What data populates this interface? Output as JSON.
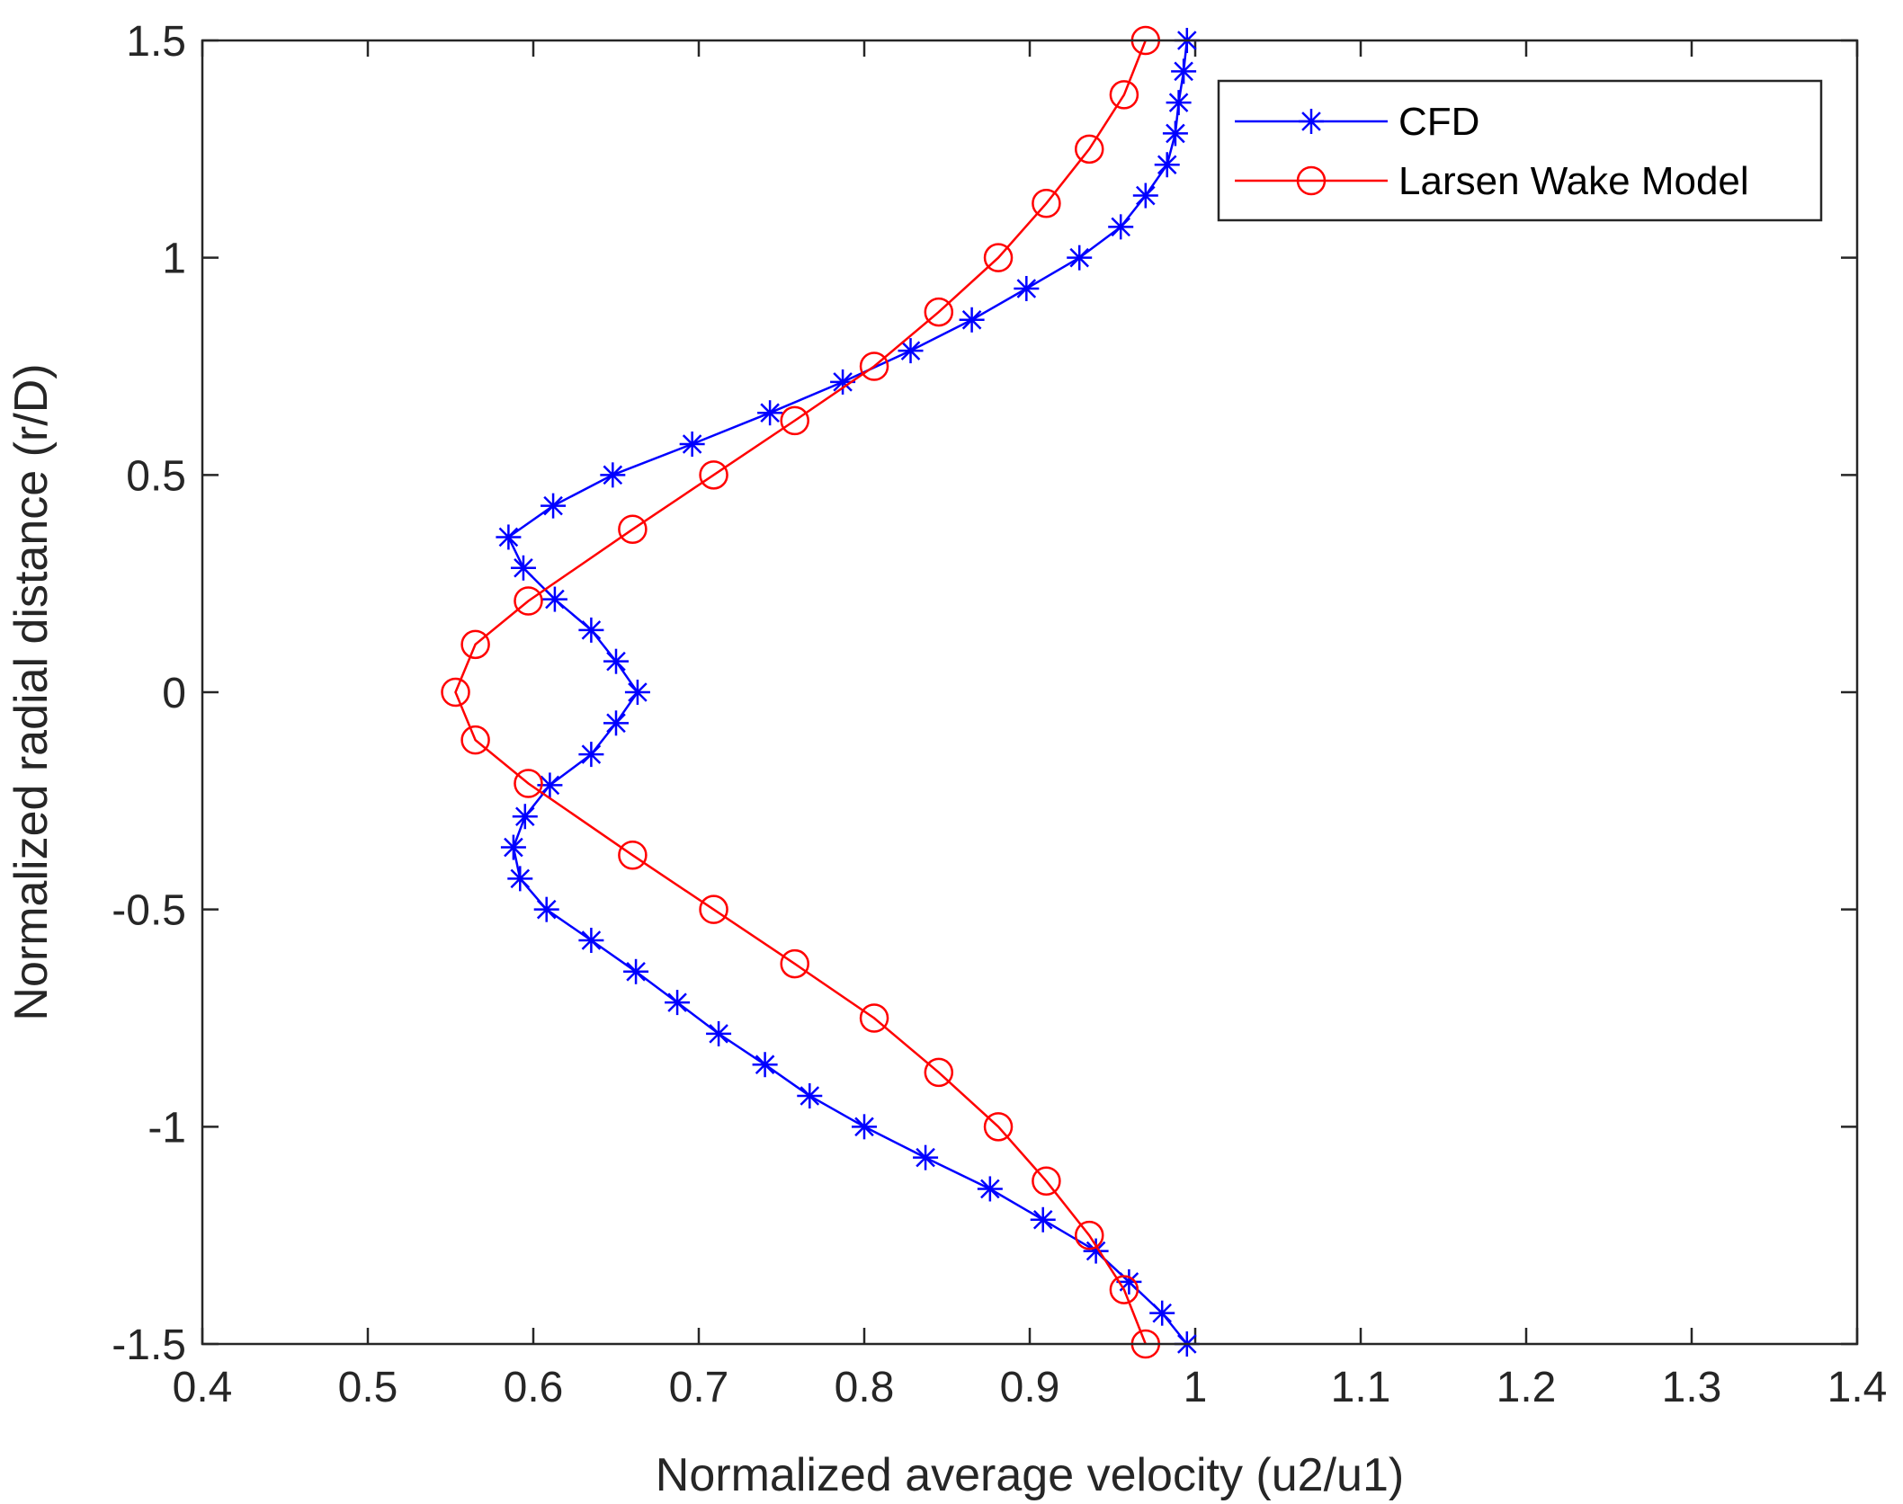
{
  "chart_data": {
    "type": "line",
    "title": "",
    "xlabel": "Normalized average velocity (u2/u1)",
    "ylabel": "Normalized radial distance (r/D)",
    "xlim": [
      0.4,
      1.4
    ],
    "ylim": [
      -1.5,
      1.5
    ],
    "x_ticks": [
      0.4,
      0.5,
      0.6,
      0.7,
      0.8,
      0.9,
      1.0,
      1.1,
      1.2,
      1.3,
      1.4
    ],
    "x_tick_labels": [
      "0.4",
      "0.5",
      "0.6",
      "0.7",
      "0.8",
      "0.9",
      "1",
      "1.1",
      "1.2",
      "1.3",
      "1.4"
    ],
    "y_ticks": [
      -1.5,
      -1.0,
      -0.5,
      0.0,
      0.5,
      1.0,
      1.5
    ],
    "y_tick_labels": [
      "-1.5",
      "-1",
      "-0.5",
      "0",
      "0.5",
      "1",
      "1.5"
    ],
    "grid": false,
    "legend_position": "top-right",
    "series": [
      {
        "name": "CFD",
        "color": "#0000ff",
        "marker": "asterisk",
        "points": [
          [
            0.995,
            1.5
          ],
          [
            0.993,
            1.429
          ],
          [
            0.99,
            1.357
          ],
          [
            0.988,
            1.286
          ],
          [
            0.983,
            1.214
          ],
          [
            0.97,
            1.143
          ],
          [
            0.955,
            1.071
          ],
          [
            0.93,
            1.0
          ],
          [
            0.898,
            0.929
          ],
          [
            0.865,
            0.857
          ],
          [
            0.828,
            0.786
          ],
          [
            0.787,
            0.714
          ],
          [
            0.743,
            0.643
          ],
          [
            0.696,
            0.571
          ],
          [
            0.648,
            0.5
          ],
          [
            0.612,
            0.429
          ],
          [
            0.585,
            0.357
          ],
          [
            0.594,
            0.286
          ],
          [
            0.613,
            0.214
          ],
          [
            0.635,
            0.143
          ],
          [
            0.65,
            0.071
          ],
          [
            0.663,
            0.0
          ],
          [
            0.65,
            -0.071
          ],
          [
            0.635,
            -0.143
          ],
          [
            0.61,
            -0.214
          ],
          [
            0.595,
            -0.286
          ],
          [
            0.588,
            -0.357
          ],
          [
            0.592,
            -0.429
          ],
          [
            0.608,
            -0.5
          ],
          [
            0.635,
            -0.571
          ],
          [
            0.662,
            -0.643
          ],
          [
            0.687,
            -0.714
          ],
          [
            0.712,
            -0.786
          ],
          [
            0.74,
            -0.857
          ],
          [
            0.767,
            -0.929
          ],
          [
            0.8,
            -1.0
          ],
          [
            0.837,
            -1.071
          ],
          [
            0.876,
            -1.143
          ],
          [
            0.908,
            -1.214
          ],
          [
            0.94,
            -1.286
          ],
          [
            0.96,
            -1.357
          ],
          [
            0.98,
            -1.429
          ],
          [
            0.995,
            -1.5
          ]
        ]
      },
      {
        "name": "Larsen Wake Model",
        "color": "#ff0000",
        "marker": "circle",
        "points": [
          [
            0.97,
            1.5
          ],
          [
            0.957,
            1.375
          ],
          [
            0.936,
            1.25
          ],
          [
            0.91,
            1.125
          ],
          [
            0.881,
            1.0
          ],
          [
            0.845,
            0.875
          ],
          [
            0.806,
            0.75
          ],
          [
            0.758,
            0.625
          ],
          [
            0.709,
            0.5
          ],
          [
            0.66,
            0.375
          ],
          [
            0.597,
            0.21
          ],
          [
            0.565,
            0.11
          ],
          [
            0.553,
            0.0
          ],
          [
            0.565,
            -0.11
          ],
          [
            0.597,
            -0.21
          ],
          [
            0.66,
            -0.375
          ],
          [
            0.709,
            -0.5
          ],
          [
            0.758,
            -0.625
          ],
          [
            0.806,
            -0.75
          ],
          [
            0.845,
            -0.875
          ],
          [
            0.881,
            -1.0
          ],
          [
            0.91,
            -1.125
          ],
          [
            0.936,
            -1.25
          ],
          [
            0.957,
            -1.375
          ],
          [
            0.97,
            -1.5
          ]
        ]
      }
    ]
  }
}
